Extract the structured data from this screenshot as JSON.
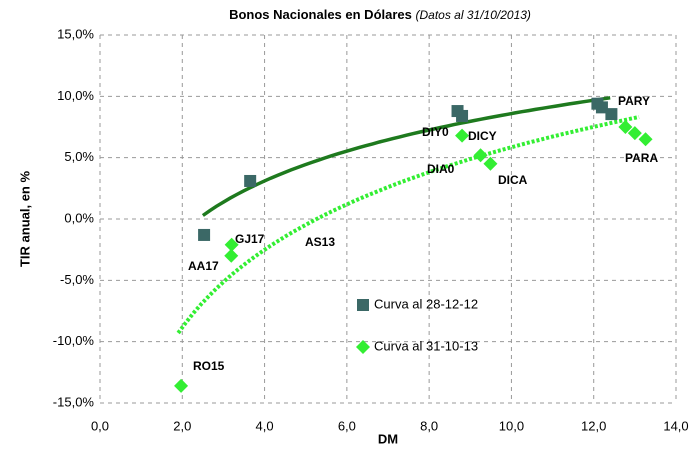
{
  "chart_data": {
    "type": "scatter",
    "title": "Bonos Nacionales en Dólares",
    "subtitle": "(Datos al 31/10/2013)",
    "x_label": "DM",
    "y_label": "TIR anual, en %",
    "xlim": [
      0,
      14
    ],
    "ylim": [
      -15,
      15
    ],
    "xticks": [
      {
        "value": 0,
        "label": "0,0"
      },
      {
        "value": 2,
        "label": "2,0"
      },
      {
        "value": 4,
        "label": "4,0"
      },
      {
        "value": 6,
        "label": "6,0"
      },
      {
        "value": 8,
        "label": "8,0"
      },
      {
        "value": 10,
        "label": "10,0"
      },
      {
        "value": 12,
        "label": "12,0"
      },
      {
        "value": 14,
        "label": "14,0"
      }
    ],
    "yticks": [
      {
        "value": -15,
        "label": "-15,0%"
      },
      {
        "value": -10,
        "label": "-10,0%"
      },
      {
        "value": -5,
        "label": "-5,0%"
      },
      {
        "value": 0,
        "label": "0,0%"
      },
      {
        "value": 5,
        "label": "5,0%"
      },
      {
        "value": 10,
        "label": "10,0%"
      },
      {
        "value": 15,
        "label": "15,0%"
      }
    ],
    "grid": true,
    "series": [
      {
        "name": "Curva al 28-12-12",
        "color": "#3b6866",
        "marker": "square",
        "x": [
          2.53,
          3.65,
          8.69,
          8.8,
          12.09,
          12.2,
          12.43
        ],
        "values": [
          -1.3,
          3.1,
          8.8,
          8.4,
          9.4,
          9.1,
          8.55
        ],
        "trendline": {
          "type": "log",
          "a": 5.99,
          "b": -5.2,
          "x_range": [
            2.5,
            12.4
          ],
          "color": "#1e7a1e",
          "style": "solid"
        }
      },
      {
        "name": "Curva al 31-10-13",
        "color": "#33ee33",
        "marker": "diamond",
        "x": [
          1.97,
          3.19,
          3.2,
          8.8,
          9.25,
          9.49,
          12.77,
          13.0,
          13.26
        ],
        "values": [
          -13.6,
          -3.0,
          -2.1,
          6.8,
          5.2,
          4.5,
          7.5,
          7.0,
          6.5
        ],
        "trendline": {
          "type": "log",
          "a": 9.12,
          "b": -15.15,
          "x_range": [
            1.9,
            13.1
          ],
          "color": "#33ee33",
          "style": "dotted"
        }
      }
    ],
    "annotations": [
      "DIY0",
      "DICY",
      "DIA0",
      "DICA",
      "PARY",
      "PARA",
      "AS13",
      "GJ17",
      "AA17",
      "RO15"
    ]
  }
}
